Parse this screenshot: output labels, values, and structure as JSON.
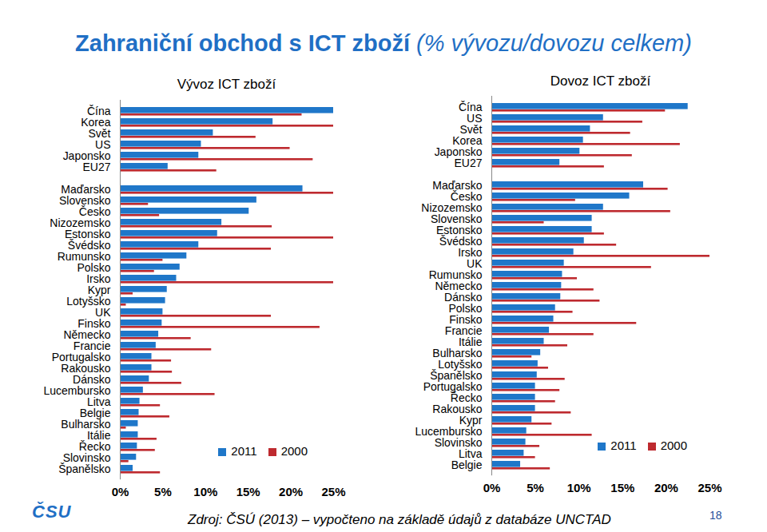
{
  "header": {
    "title": "Zahraniční obchod s ICT zboží",
    "subtitle": "(% vývozu/dovozu celkem)"
  },
  "footer": {
    "source": "Zdroj: ČSÚ (2013) – vypočteno na základě údajů z databáze UNCTAD",
    "page": "18",
    "logo": "ČSU"
  },
  "chart_data": [
    {
      "type": "bar",
      "orientation": "horizontal",
      "title": "Vývoz ICT zboží",
      "categories": [
        "Čína",
        "Korea",
        "Svět",
        "US",
        "Japonsko",
        "EU27",
        null,
        "Maďarsko",
        "Slovensko",
        "Česko",
        "Nizozemsko",
        "Estonsko",
        "Švédsko",
        "Rumunsko",
        "Polsko",
        "Irsko",
        "Kypr",
        "Lotyšsko",
        "UK",
        "Finsko",
        "Německo",
        "Francie",
        "Portugalsko",
        "Rakousko",
        "Dánsko",
        "Lucembursko",
        "Litva",
        "Belgie",
        "Bulharsko",
        "Itálie",
        "Řecko",
        "Slovinsko",
        "Španělsko"
      ],
      "series": [
        {
          "name": "2011",
          "color": "#1f77c9",
          "values": [
            25.0,
            17.9,
            10.9,
            9.5,
            9.2,
            5.6,
            null,
            21.4,
            16.0,
            15.1,
            11.9,
            11.4,
            9.2,
            7.8,
            7.0,
            6.6,
            5.5,
            5.3,
            5.0,
            4.9,
            4.5,
            4.2,
            3.7,
            3.7,
            3.4,
            2.7,
            2.3,
            2.2,
            2.1,
            2.1,
            2.0,
            1.9,
            1.5
          ]
        },
        {
          "name": "2000",
          "color": "#be2a2f",
          "values": [
            21.3,
            25,
            15.9,
            19.9,
            22.6,
            11.3,
            null,
            25,
            3.3,
            4.6,
            17.8,
            25,
            17.7,
            5.0,
            4.0,
            25,
            1.5,
            0.7,
            17.7,
            23.4,
            8.3,
            10.7,
            6.0,
            6.1,
            7.2,
            11.1,
            4.7,
            5.8,
            0.7,
            4.3,
            4.1,
            1.0,
            4.7
          ]
        }
      ],
      "xlim": [
        0,
        25
      ],
      "xticks": [
        {
          "value": 0,
          "label": "0%"
        },
        {
          "value": 5,
          "label": "5%"
        },
        {
          "value": 10,
          "label": "10%"
        },
        {
          "value": 15,
          "label": "15%"
        },
        {
          "value": 20,
          "label": "20%"
        },
        {
          "value": 25,
          "label": "25%"
        }
      ],
      "legend": "lower right"
    },
    {
      "type": "bar",
      "orientation": "horizontal",
      "title": "Dovoz ICT zboží",
      "categories": [
        "Čína",
        "US",
        "Svět",
        "Korea",
        "Japonsko",
        "EU27",
        null,
        "Maďarsko",
        "Česko",
        "Nizozemsko",
        "Slovensko",
        "Estonsko",
        "Švédsko",
        "Irsko",
        "UK",
        "Rumunsko",
        "Německo",
        "Dánsko",
        "Polsko",
        "Finsko",
        "Francie",
        "Itálie",
        "Bulharsko",
        "Lotyšsko",
        "Španělsko",
        "Portugalsko",
        "Řecko",
        "Rakousko",
        "Kypr",
        "Lucembursko",
        "Slovinsko",
        "Litva",
        "Belgie"
      ],
      "series": [
        {
          "name": "2011",
          "color": "#1f77c9",
          "values": [
            22.5,
            12.8,
            11.3,
            10.5,
            10.1,
            7.8,
            null,
            17.4,
            15.8,
            12.8,
            11.5,
            11.5,
            10.6,
            9.4,
            8.3,
            8.1,
            8.0,
            7.9,
            7.3,
            7.1,
            6.6,
            6.0,
            5.6,
            5.3,
            5.2,
            5.0,
            5.0,
            5.0,
            4.6,
            4.0,
            3.9,
            3.7,
            3.3
          ]
        },
        {
          "name": "2000",
          "color": "#be2a2f",
          "values": [
            19.9,
            17.3,
            15.9,
            21.6,
            16.1,
            12.9,
            null,
            20.2,
            9.6,
            20.5,
            6.0,
            12.9,
            14.3,
            25,
            18.3,
            9.8,
            11.7,
            12.4,
            9.3,
            16.6,
            11.7,
            8.7,
            4.6,
            6.5,
            8.4,
            7.8,
            7.3,
            9.1,
            6.9,
            11.5,
            5.5,
            5.0,
            6.7
          ]
        }
      ],
      "xlim": [
        0,
        25
      ],
      "xticks": [
        {
          "value": 0,
          "label": "0%"
        },
        {
          "value": 5,
          "label": "5%"
        },
        {
          "value": 10,
          "label": "10%"
        },
        {
          "value": 15,
          "label": "15%"
        },
        {
          "value": 20,
          "label": "20%"
        },
        {
          "value": 25,
          "label": "25%"
        }
      ],
      "legend": "lower right"
    }
  ]
}
